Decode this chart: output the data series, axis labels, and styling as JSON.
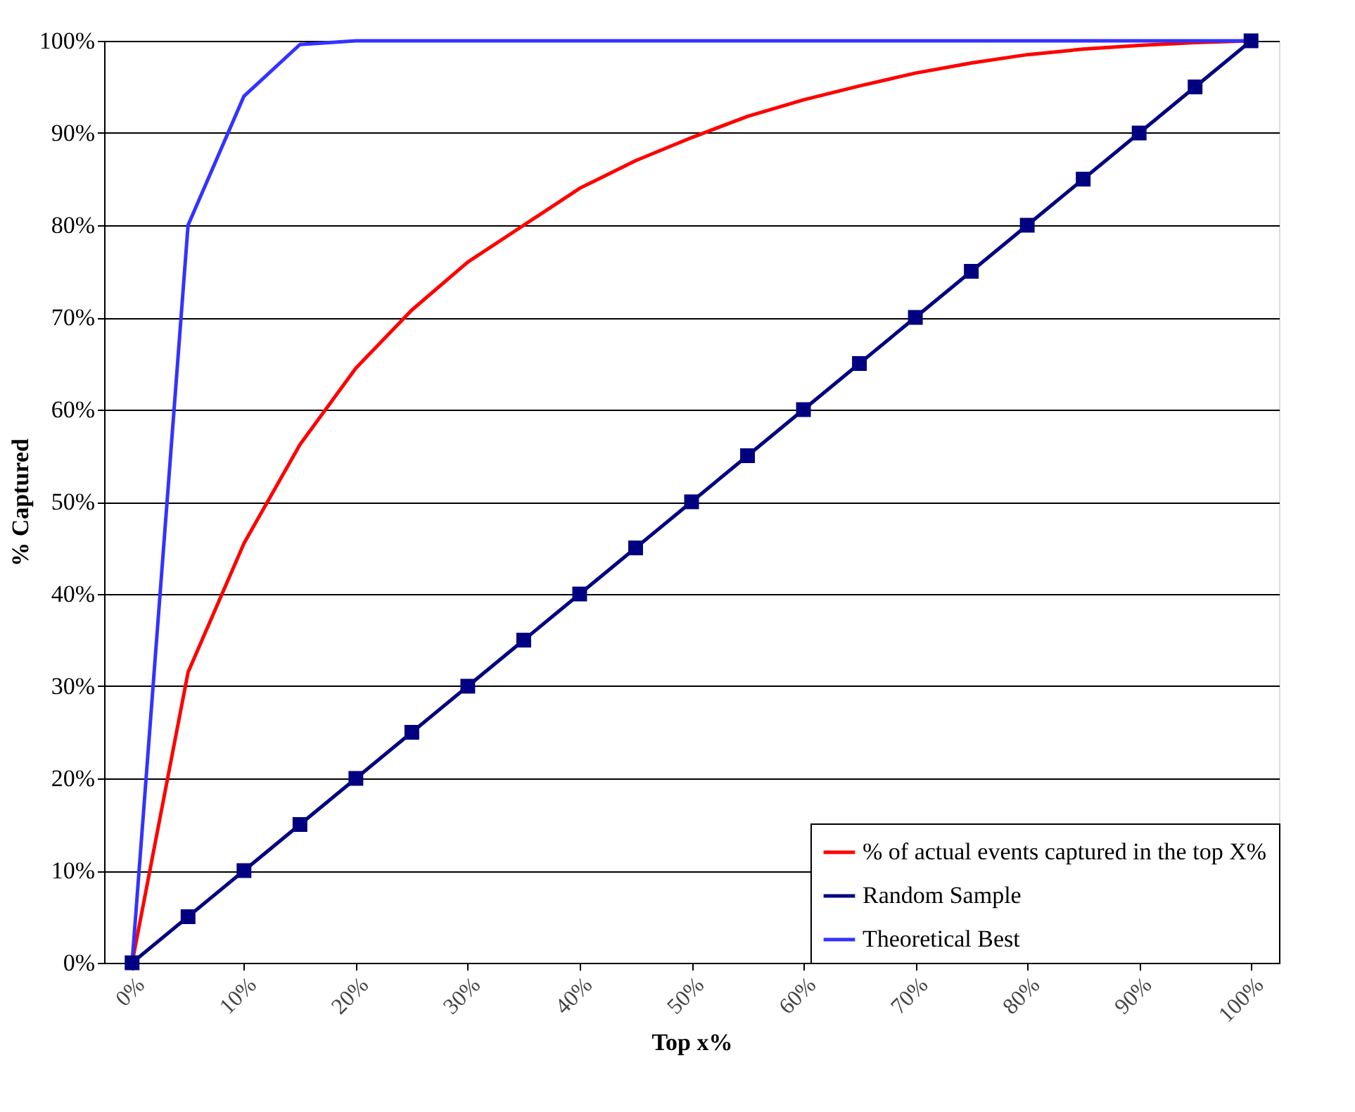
{
  "chart_data": {
    "type": "line",
    "xlabel": "Top x%",
    "ylabel": "% Captured",
    "x": [
      0,
      5,
      10,
      15,
      20,
      25,
      30,
      35,
      40,
      45,
      50,
      55,
      60,
      65,
      70,
      75,
      80,
      85,
      90,
      95,
      100
    ],
    "series": [
      {
        "name": "% of actual events captured in the top X%",
        "color": "#ff0000",
        "marker": "none",
        "values": [
          0,
          31.5,
          45.5,
          56.2,
          64.5,
          70.8,
          76,
          80,
          84,
          87,
          89.5,
          91.8,
          93.6,
          95.1,
          96.5,
          97.6,
          98.5,
          99.1,
          99.5,
          99.8,
          100
        ]
      },
      {
        "name": "Random Sample",
        "color": "#000080",
        "marker": "square",
        "values": [
          0,
          5,
          10,
          15,
          20,
          25,
          30,
          35,
          40,
          45,
          50,
          55,
          60,
          65,
          70,
          75,
          80,
          85,
          90,
          95,
          100
        ]
      },
      {
        "name": "Theoretical Best",
        "color": "#3333ff",
        "marker": "none",
        "values": [
          0,
          80,
          94,
          99.6,
          100,
          100,
          100,
          100,
          100,
          100,
          100,
          100,
          100,
          100,
          100,
          100,
          100,
          100,
          100,
          100,
          100
        ]
      }
    ],
    "xlim": [
      -2.5,
      102.5
    ],
    "xticks": [
      {
        "value": 0,
        "label": "0%"
      },
      {
        "value": 10,
        "label": "10%"
      },
      {
        "value": 20,
        "label": "20%"
      },
      {
        "value": 30,
        "label": "30%"
      },
      {
        "value": 40,
        "label": "40%"
      },
      {
        "value": 50,
        "label": "50%"
      },
      {
        "value": 60,
        "label": "60%"
      },
      {
        "value": 70,
        "label": "70%"
      },
      {
        "value": 80,
        "label": "80%"
      },
      {
        "value": 90,
        "label": "90%"
      },
      {
        "value": 100,
        "label": "100%"
      }
    ],
    "ylim": [
      0,
      100
    ],
    "yticks": [
      {
        "value": 0,
        "label": "0%"
      },
      {
        "value": 10,
        "label": "10%"
      },
      {
        "value": 20,
        "label": "20%"
      },
      {
        "value": 30,
        "label": "30%"
      },
      {
        "value": 40,
        "label": "40%"
      },
      {
        "value": 50,
        "label": "50%"
      },
      {
        "value": 60,
        "label": "60%"
      },
      {
        "value": 70,
        "label": "70%"
      },
      {
        "value": 80,
        "label": "80%"
      },
      {
        "value": 90,
        "label": "90%"
      },
      {
        "value": 100,
        "label": "100%"
      }
    ],
    "grid": "y",
    "legend": "bottom right",
    "line_style": "solid"
  }
}
